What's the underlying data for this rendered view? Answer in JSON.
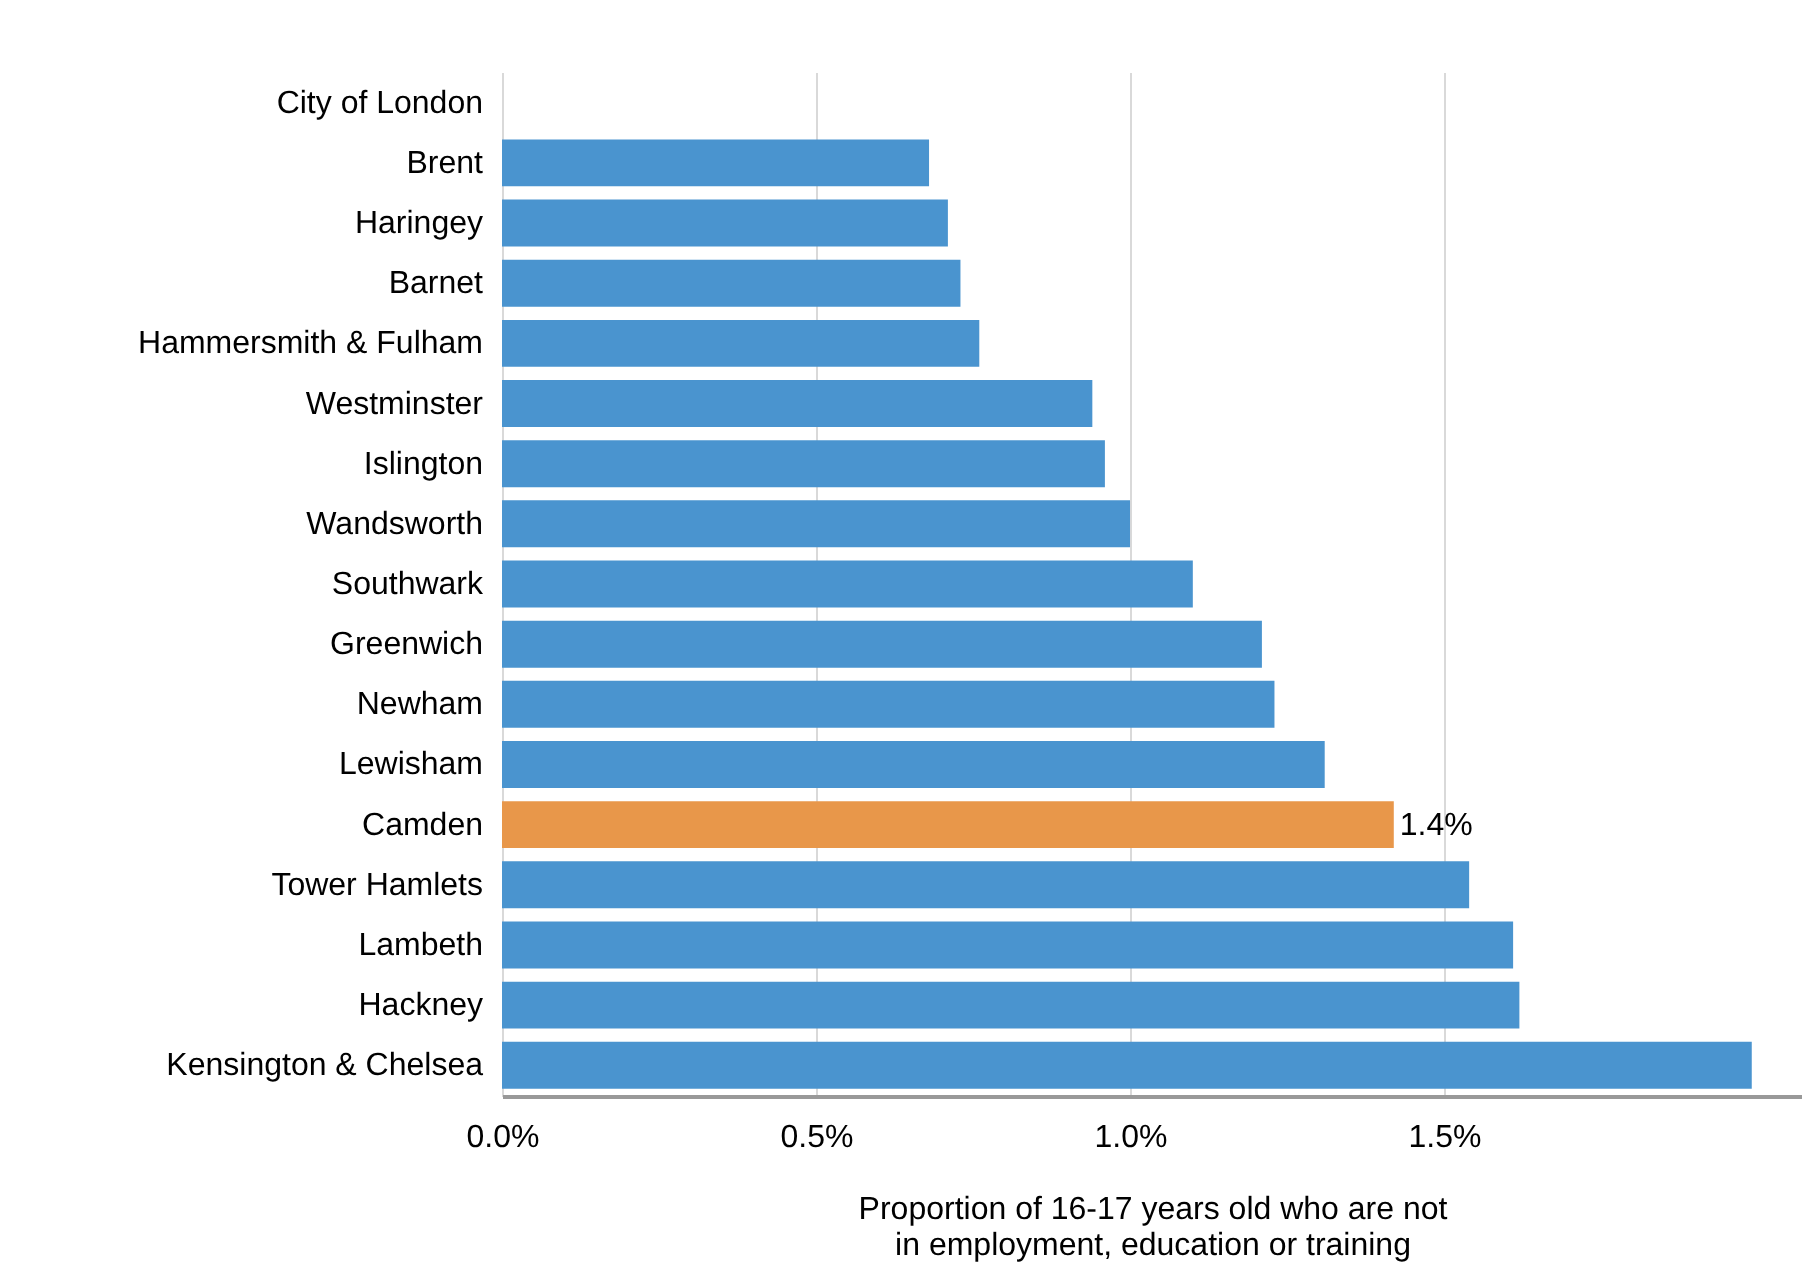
{
  "chart_data": {
    "type": "bar",
    "orientation": "horizontal",
    "xlabel": "Proportion of 16-17 years old who are not\nin employment, education or training",
    "categories": [
      "City of London",
      "Brent",
      "Haringey",
      "Barnet",
      "Hammersmith & Fulham",
      "Westminster",
      "Islington",
      "Wandsworth",
      "Southwark",
      "Greenwich",
      "Newham",
      "Lewisham",
      "Camden",
      "Tower Hamlets",
      "Lambeth",
      "Hackney",
      "Kensington & Chelsea"
    ],
    "values": [
      null,
      0.68,
      0.71,
      0.73,
      0.76,
      0.94,
      0.96,
      1.0,
      1.1,
      1.21,
      1.23,
      1.31,
      1.42,
      1.54,
      1.61,
      1.62,
      1.99
    ],
    "colors": [
      "#4a94cf",
      "#4a94cf",
      "#4a94cf",
      "#4a94cf",
      "#4a94cf",
      "#4a94cf",
      "#4a94cf",
      "#4a94cf",
      "#4a94cf",
      "#4a94cf",
      "#4a94cf",
      "#4a94cf",
      "#e8974a",
      "#4a94cf",
      "#4a94cf",
      "#4a94cf",
      "#4a94cf"
    ],
    "value_labels": [
      null,
      null,
      null,
      null,
      null,
      null,
      null,
      null,
      null,
      null,
      null,
      null,
      "1.4%",
      null,
      null,
      null,
      null
    ],
    "xlim": [
      0,
      2.07
    ],
    "xticks": [
      {
        "value": 0,
        "label": "0.0%"
      },
      {
        "value": 0.5,
        "label": "0.5%"
      },
      {
        "value": 1.0,
        "label": "1.0%"
      },
      {
        "value": 1.5,
        "label": "1.5%"
      }
    ],
    "grid": "x"
  }
}
